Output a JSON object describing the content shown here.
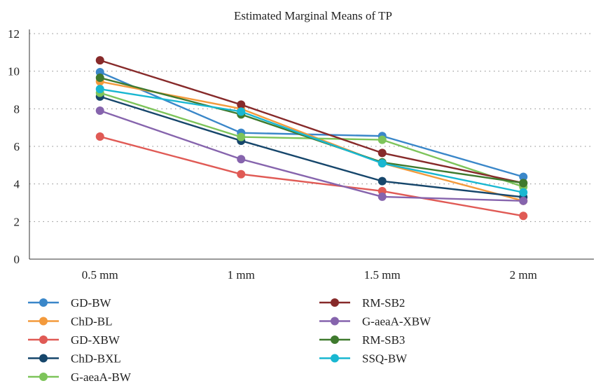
{
  "chart_data": {
    "type": "line",
    "title": "Estimated Marginal Means of TP",
    "xlabel": "",
    "ylabel": "",
    "categories": [
      "0.5 mm",
      "1 mm",
      "1.5 mm",
      "2 mm"
    ],
    "ylim": [
      0,
      12
    ],
    "yticks": [
      0,
      2,
      4,
      6,
      8,
      10,
      12
    ],
    "grid": "horizontal dotted",
    "legend_position": "bottom",
    "series": [
      {
        "name": "GD-BW",
        "color": "#3a87c9",
        "values": [
          9.95,
          6.72,
          6.55,
          4.38
        ]
      },
      {
        "name": "ChD-BL",
        "color": "#f39a3c",
        "values": [
          9.45,
          8.0,
          5.1,
          3.1
        ]
      },
      {
        "name": "GD-XBW",
        "color": "#e05a55",
        "values": [
          6.52,
          4.52,
          3.62,
          2.3
        ]
      },
      {
        "name": "ChD-BXL",
        "color": "#16466b",
        "values": [
          8.65,
          6.3,
          4.15,
          3.3
        ]
      },
      {
        "name": "G-aeaA-BW",
        "color": "#7dc45a",
        "values": [
          8.85,
          6.5,
          6.35,
          3.85
        ]
      },
      {
        "name": "RM-SB2",
        "color": "#872a2a",
        "values": [
          10.58,
          8.22,
          5.65,
          4.05
        ]
      },
      {
        "name": "G-aeaA-XBW",
        "color": "#8664ad",
        "values": [
          7.9,
          5.32,
          3.32,
          3.1
        ]
      },
      {
        "name": "RM-SB3",
        "color": "#3f7a2e",
        "values": [
          9.65,
          7.7,
          5.15,
          4.05
        ]
      },
      {
        "name": "SSQ-BW",
        "color": "#19b7d1",
        "values": [
          9.05,
          7.85,
          5.1,
          3.55
        ]
      }
    ]
  }
}
